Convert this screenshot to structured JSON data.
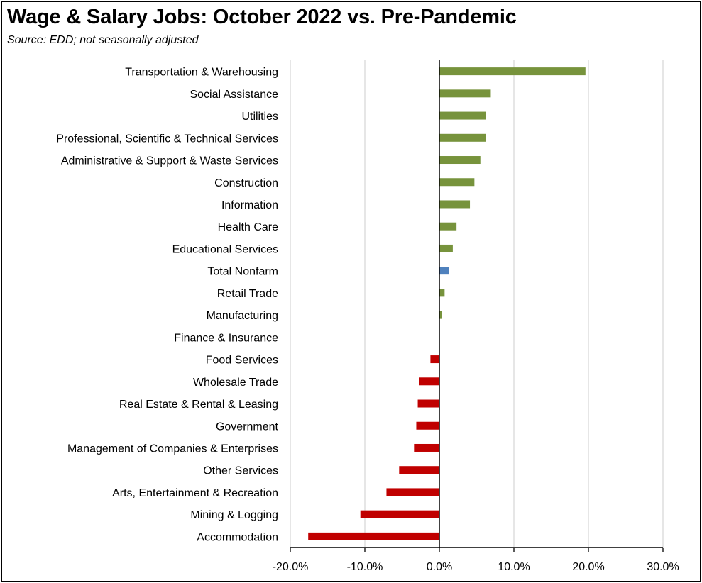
{
  "title": "Wage & Salary Jobs:  October 2022 vs. Pre-Pandemic",
  "subtitle": "Source:  EDD; not seasonally adjusted",
  "colors": {
    "positive": "#77933c",
    "negative": "#c00000",
    "total": "#4f81bd",
    "grid": "#d9d9d9",
    "axis": "#000000"
  },
  "chart_data": {
    "type": "bar",
    "orientation": "horizontal",
    "categories": [
      "Transportation & Warehousing",
      "Social Assistance",
      "Utilities",
      "Professional, Scientific & Technical Services",
      "Administrative & Support & Waste Services",
      "Construction",
      "Information",
      "Health Care",
      "Educational Services",
      "Total Nonfarm",
      "Retail Trade",
      "Manufacturing",
      "Finance & Insurance",
      "Food Services",
      "Wholesale Trade",
      "Real Estate & Rental & Leasing",
      "Government",
      "Management of Companies & Enterprises",
      "Other Services",
      "Arts, Entertainment & Recreation",
      "Mining & Logging",
      "Accommodation"
    ],
    "values": [
      19.6,
      6.9,
      6.2,
      6.2,
      5.5,
      4.7,
      4.1,
      2.3,
      1.8,
      1.3,
      0.7,
      0.3,
      0.0,
      -1.2,
      -2.7,
      -2.9,
      -3.1,
      -3.4,
      -5.4,
      -7.1,
      -10.6,
      -17.6
    ],
    "highlight": "Total Nonfarm",
    "xlim": [
      -20,
      30
    ],
    "xticks": [
      "-20.0%",
      "-10.0%",
      "0.0%",
      "10.0%",
      "20.0%",
      "30.0%"
    ],
    "grid": true,
    "legend": false
  }
}
